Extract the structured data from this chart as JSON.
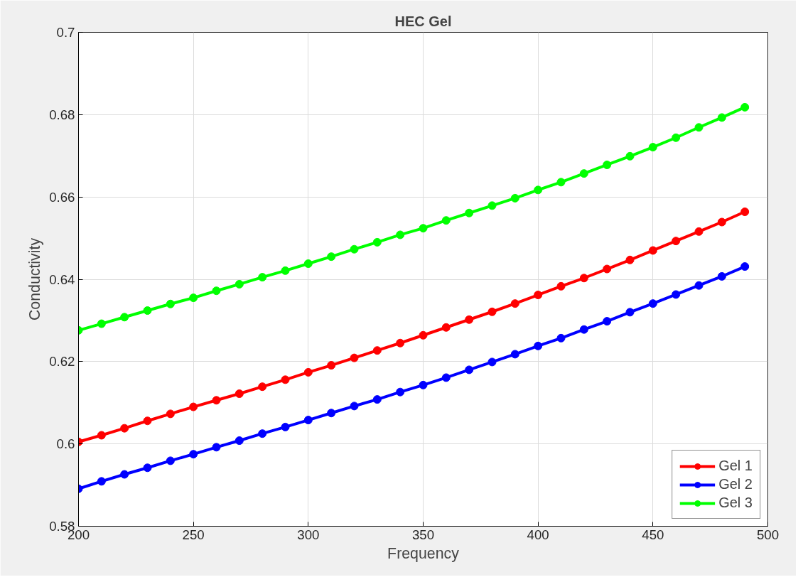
{
  "chart_data": {
    "type": "line",
    "title": "HEC Gel",
    "xlabel": "Frequency",
    "ylabel": "Conductivity",
    "x": [
      200,
      210,
      220,
      230,
      240,
      250,
      260,
      270,
      280,
      290,
      300,
      310,
      320,
      330,
      340,
      350,
      360,
      370,
      380,
      390,
      400,
      410,
      420,
      430,
      440,
      450,
      460,
      470,
      480,
      490
    ],
    "series": [
      {
        "name": "Gel 1",
        "color": "#ff0000",
        "values": [
          0.6005,
          0.6021,
          0.6038,
          0.6056,
          0.6073,
          0.609,
          0.6106,
          0.6122,
          0.6139,
          0.6156,
          0.6174,
          0.6191,
          0.6209,
          0.6227,
          0.6245,
          0.6264,
          0.6283,
          0.6302,
          0.6321,
          0.6341,
          0.6362,
          0.6383,
          0.6403,
          0.6425,
          0.6447,
          0.647,
          0.6493,
          0.6516,
          0.6539,
          0.6564
        ]
      },
      {
        "name": "Gel 2",
        "color": "#0000ff",
        "values": [
          0.5891,
          0.5909,
          0.5926,
          0.5942,
          0.5959,
          0.5975,
          0.5992,
          0.6008,
          0.6025,
          0.6041,
          0.6058,
          0.6075,
          0.6092,
          0.6108,
          0.6126,
          0.6143,
          0.6161,
          0.618,
          0.6199,
          0.6218,
          0.6238,
          0.6257,
          0.6278,
          0.6298,
          0.632,
          0.6341,
          0.6363,
          0.6385,
          0.6407,
          0.6431
        ]
      },
      {
        "name": "Gel 3",
        "color": "#00ff00",
        "values": [
          0.6276,
          0.6292,
          0.6308,
          0.6324,
          0.634,
          0.6355,
          0.6372,
          0.6388,
          0.6405,
          0.6421,
          0.6438,
          0.6455,
          0.6473,
          0.649,
          0.6508,
          0.6524,
          0.6543,
          0.6561,
          0.6579,
          0.6597,
          0.6617,
          0.6636,
          0.6657,
          0.6678,
          0.6699,
          0.6721,
          0.6744,
          0.6769,
          0.6793,
          0.6818
        ]
      }
    ],
    "xlim": [
      200,
      500
    ],
    "xticks": [
      200,
      250,
      300,
      350,
      400,
      450,
      500
    ],
    "ylim": [
      0.58,
      0.7
    ],
    "yticks": [
      0.58,
      0.6,
      0.62,
      0.64,
      0.66,
      0.68,
      0.7
    ],
    "grid": true,
    "legend": "bottom right",
    "marker": "circle",
    "line_style": "solid"
  }
}
